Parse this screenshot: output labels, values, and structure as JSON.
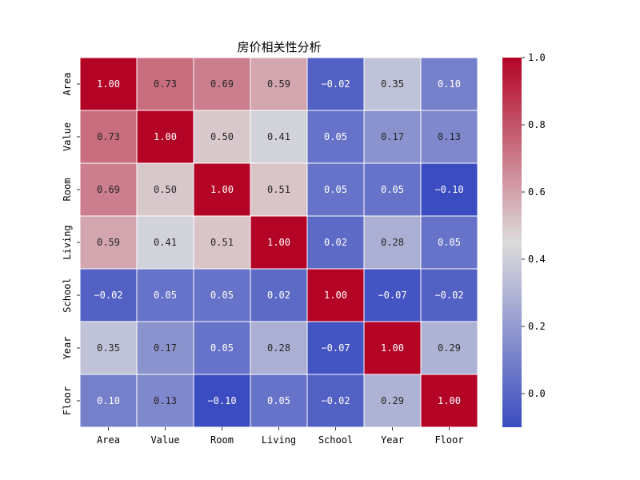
{
  "chart_data": {
    "type": "heatmap",
    "title": "房价相关性分析",
    "x_categories": [
      "Area",
      "Value",
      "Room",
      "Living",
      "School",
      "Year",
      "Floor"
    ],
    "y_categories": [
      "Area",
      "Value",
      "Room",
      "Living",
      "School",
      "Year",
      "Floor"
    ],
    "values": [
      [
        1.0,
        0.73,
        0.69,
        0.59,
        -0.02,
        0.35,
        0.1
      ],
      [
        0.73,
        1.0,
        0.5,
        0.41,
        0.05,
        0.17,
        0.13
      ],
      [
        0.69,
        0.5,
        1.0,
        0.51,
        0.05,
        0.05,
        -0.1
      ],
      [
        0.59,
        0.41,
        0.51,
        1.0,
        0.02,
        0.28,
        0.05
      ],
      [
        -0.02,
        0.05,
        0.05,
        0.02,
        1.0,
        -0.07,
        -0.02
      ],
      [
        0.35,
        0.17,
        0.05,
        0.28,
        -0.07,
        1.0,
        0.29
      ],
      [
        0.1,
        0.13,
        -0.1,
        0.05,
        -0.02,
        0.29,
        1.0
      ]
    ],
    "value_format": "0.00",
    "colormap": "coolwarm",
    "colormap_stops": [
      "#3b4cc0",
      "#dddcdc",
      "#b40426"
    ],
    "colorbar": {
      "range": [
        -0.1,
        1.0
      ],
      "ticks": [
        "0.0",
        "0.2",
        "0.4",
        "0.6",
        "0.8",
        "1.0"
      ],
      "tick_values": [
        0.0,
        0.2,
        0.4,
        0.6,
        0.8,
        1.0
      ]
    },
    "cell_border_color": "#ffffff"
  }
}
